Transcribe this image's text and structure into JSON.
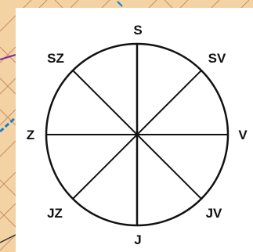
{
  "map": {
    "title": "",
    "compass_rose": {
      "north_label": "S",
      "northeast_label": "SV",
      "east_label": "V",
      "southeast_label": "JV",
      "south_label": "J",
      "southwest_label": "JZ",
      "west_label": "Z",
      "northwest_label": "SZ"
    }
  },
  "colors": {
    "map_background": "#f3d2a3",
    "contour_lines": "#c89066",
    "boundary_purple": "#7a2a9a",
    "river_blue": "#1a7ec9",
    "compass_panel": "#ffffff",
    "compass_ink": "#111111"
  }
}
